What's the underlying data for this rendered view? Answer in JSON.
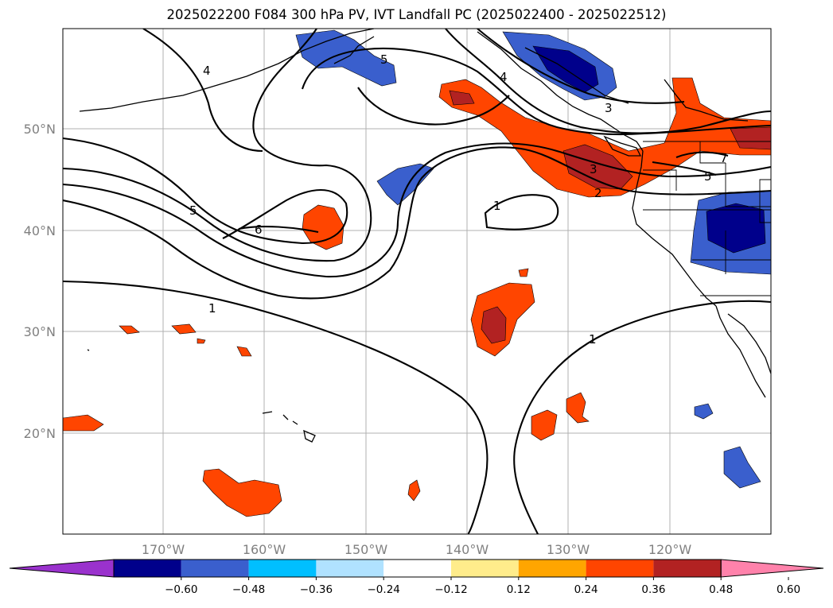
{
  "title": "2025022200 F084 300 hPa PV, IVT Landfall PC (2025022400 - 2025022512)",
  "lat_labels": [
    "50°N",
    "40°N",
    "30°N",
    "20°N"
  ],
  "lon_labels": [
    "170°W",
    "160°W",
    "150°W",
    "140°W",
    "130°W",
    "120°W"
  ],
  "contour_labels": [
    "4",
    "5",
    "5",
    "6",
    "1",
    "4",
    "3",
    "3",
    "2",
    "1",
    "1",
    "5",
    "7"
  ],
  "colorbar": {
    "tick_labels": [
      "−0.60",
      "−0.48",
      "−0.36",
      "−0.24",
      "−0.12",
      "0.12",
      "0.24",
      "0.36",
      "0.48",
      "0.60"
    ],
    "colors": [
      "#9a32cd",
      "#00008b",
      "#3a5fcd",
      "#00bfff",
      "#b0e2ff",
      "#ffffff",
      "#ffec8b",
      "#ffa500",
      "#ff4500",
      "#b22222",
      "#ff82ab"
    ]
  },
  "shading_colors": {
    "neg_weak": "#00bfff",
    "neg_mid": "#3a5fcd",
    "neg_strong": "#00008b",
    "pos_weak": "#ffec8b",
    "pos_mid": "#ff4500",
    "pos_strong": "#b22222"
  }
}
